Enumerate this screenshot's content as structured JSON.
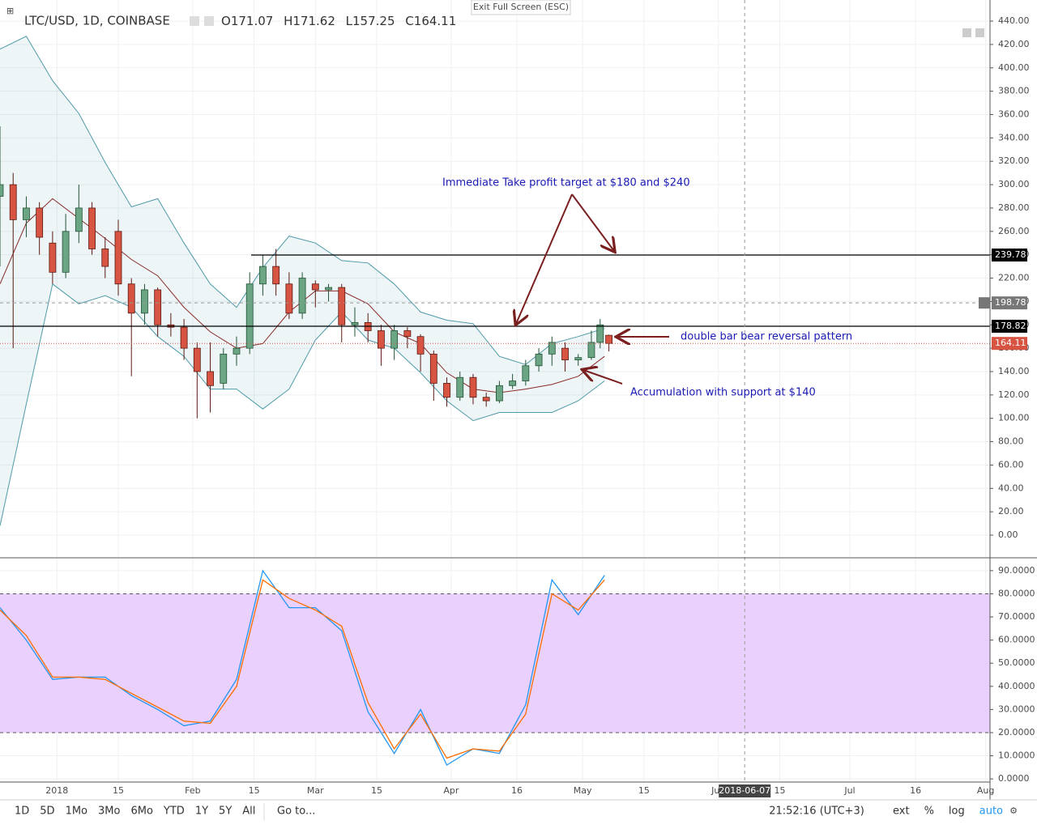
{
  "chart_data": [
    {
      "type": "candlestick",
      "x": [
        "2017-12-19",
        "2017-12-22",
        "2017-12-25",
        "2017-12-28",
        "2017-12-31",
        "2018-01-03",
        "2018-01-06",
        "2018-01-09",
        "2018-01-12",
        "2018-01-15",
        "2018-01-18",
        "2018-01-21",
        "2018-01-24",
        "2018-01-27",
        "2018-01-30",
        "2018-02-02",
        "2018-02-05",
        "2018-02-08",
        "2018-02-11",
        "2018-02-14",
        "2018-02-17",
        "2018-02-20",
        "2018-02-23",
        "2018-02-26",
        "2018-03-01",
        "2018-03-04",
        "2018-03-07",
        "2018-03-10",
        "2018-03-13",
        "2018-03-16",
        "2018-03-19",
        "2018-03-22",
        "2018-03-25",
        "2018-03-28",
        "2018-03-31",
        "2018-04-03",
        "2018-04-06",
        "2018-04-09",
        "2018-04-12",
        "2018-04-15",
        "2018-04-18",
        "2018-04-21",
        "2018-04-24",
        "2018-04-27",
        "2018-04-30",
        "2018-05-03",
        "2018-05-05",
        "2018-05-07"
      ],
      "open": [
        290,
        300,
        270,
        280,
        250,
        225,
        260,
        280,
        245,
        260,
        215,
        190,
        210,
        180,
        178,
        160,
        140,
        130,
        155,
        160,
        215,
        230,
        215,
        190,
        215,
        210,
        212,
        180,
        182,
        175,
        160,
        175,
        170,
        155,
        130,
        118,
        135,
        118,
        115,
        128,
        132,
        145,
        155,
        160,
        150,
        152,
        165,
        171.07
      ],
      "high": [
        350,
        310,
        290,
        285,
        260,
        275,
        300,
        285,
        255,
        270,
        220,
        215,
        212,
        190,
        185,
        165,
        165,
        160,
        170,
        225,
        240,
        245,
        225,
        225,
        218,
        215,
        215,
        195,
        190,
        180,
        180,
        178,
        172,
        158,
        135,
        140,
        138,
        122,
        132,
        138,
        150,
        160,
        170,
        165,
        155,
        175,
        185,
        171.62
      ],
      "low": [
        230,
        160,
        255,
        240,
        215,
        220,
        250,
        240,
        220,
        205,
        136,
        180,
        170,
        170,
        150,
        100,
        105,
        125,
        145,
        155,
        205,
        205,
        185,
        185,
        195,
        200,
        165,
        170,
        165,
        145,
        150,
        160,
        140,
        115,
        110,
        115,
        112,
        110,
        113,
        125,
        128,
        140,
        145,
        140,
        145,
        150,
        160,
        157.25
      ],
      "close": [
        300,
        270,
        280,
        255,
        225,
        260,
        280,
        245,
        230,
        215,
        190,
        210,
        180,
        178,
        160,
        140,
        128,
        155,
        160,
        215,
        230,
        215,
        190,
        220,
        210,
        212,
        180,
        182,
        175,
        160,
        175,
        170,
        155,
        130,
        118,
        135,
        118,
        115,
        128,
        132,
        145,
        155,
        165,
        150,
        152,
        165,
        180,
        164.11
      ],
      "up_color": "#6ba583",
      "down_color": "#d75442",
      "bands": {
        "x": [
          "2017-12-19",
          "2017-12-25",
          "2017-12-31",
          "2018-01-06",
          "2018-01-12",
          "2018-01-18",
          "2018-01-24",
          "2018-01-30",
          "2018-02-05",
          "2018-02-11",
          "2018-02-17",
          "2018-02-23",
          "2018-03-01",
          "2018-03-07",
          "2018-03-13",
          "2018-03-19",
          "2018-03-25",
          "2018-03-31",
          "2018-04-06",
          "2018-04-12",
          "2018-04-18",
          "2018-04-24",
          "2018-04-30",
          "2018-05-06"
        ],
        "upper": [
          416,
          427,
          389,
          361,
          319,
          281,
          288,
          250,
          215,
          195,
          229,
          256,
          250,
          235,
          233,
          215,
          191,
          184,
          181,
          153,
          146,
          164,
          170,
          177
        ],
        "middle": [
          215,
          267,
          288,
          271,
          254,
          236,
          222,
          195,
          174,
          160,
          164,
          191,
          209,
          209,
          198,
          174,
          164,
          139,
          125,
          122,
          125,
          129,
          136,
          153
        ],
        "lower": [
          8,
          112,
          215,
          198,
          205,
          195,
          170,
          153,
          125,
          125,
          108,
          125,
          167,
          191,
          167,
          160,
          139,
          115,
          98,
          105,
          105,
          105,
          115,
          132
        ],
        "band_color": "#4f9aa8",
        "middle_color": "#8a2b2b"
      },
      "levels": [
        239.78,
        178.82
      ],
      "crosshair": {
        "price": 198.78,
        "date": "2018-06-07"
      },
      "annotations": [
        "Immediate Take profit target at $180 and $240",
        "double bar bear reversal pattern",
        "Accumulation with support at $140"
      ],
      "xlim": [
        "2017-12-19",
        "2018-08-02"
      ],
      "xticks": [
        {
          "value": "2018-01-01",
          "label": "2018"
        },
        {
          "value": "2018-01-15",
          "label": "15"
        },
        {
          "value": "2018-02-01",
          "label": "Feb"
        },
        {
          "value": "2018-02-15",
          "label": "15"
        },
        {
          "value": "2018-03-01",
          "label": "Mar"
        },
        {
          "value": "2018-03-15",
          "label": "15"
        },
        {
          "value": "2018-04-01",
          "label": "Apr"
        },
        {
          "value": "2018-04-16",
          "label": "16"
        },
        {
          "value": "2018-05-01",
          "label": "May"
        },
        {
          "value": "2018-05-15",
          "label": "15"
        },
        {
          "value": "2018-06-01",
          "label": "Jun"
        },
        {
          "value": "2018-06-15",
          "label": "15"
        },
        {
          "value": "2018-07-01",
          "label": "Jul"
        },
        {
          "value": "2018-07-16",
          "label": "16"
        },
        {
          "value": "2018-08-01",
          "label": "Aug"
        }
      ],
      "ylim": [
        -18.7,
        454.6
      ],
      "yticks": [
        {
          "value": 0,
          "label": "0.00"
        },
        {
          "value": 20,
          "label": "20.00"
        },
        {
          "value": 40,
          "label": "40.00"
        },
        {
          "value": 60,
          "label": "60.00"
        },
        {
          "value": 80,
          "label": "80.00"
        },
        {
          "value": 100,
          "label": "100.00"
        },
        {
          "value": 120,
          "label": "120.00"
        },
        {
          "value": 140,
          "label": "140.00"
        },
        {
          "value": 160,
          "label": "160.00"
        },
        {
          "value": 180,
          "label": "180.00"
        },
        {
          "value": 200,
          "label": "200.00"
        },
        {
          "value": 220,
          "label": "220.00"
        },
        {
          "value": 240,
          "label": "240.00"
        },
        {
          "value": 260,
          "label": "260.00"
        },
        {
          "value": 280,
          "label": "280.00"
        },
        {
          "value": 300,
          "label": "300.00"
        },
        {
          "value": 320,
          "label": "320.00"
        },
        {
          "value": 340,
          "label": "340.00"
        },
        {
          "value": 360,
          "label": "360.00"
        },
        {
          "value": 380,
          "label": "380.00"
        },
        {
          "value": 400,
          "label": "400.00"
        },
        {
          "value": 420,
          "label": "420.00"
        },
        {
          "value": 440,
          "label": "440.00"
        }
      ],
      "grid": true
    },
    {
      "type": "line",
      "x": [
        "2017-12-19",
        "2017-12-25",
        "2017-12-31",
        "2018-01-06",
        "2018-01-12",
        "2018-01-18",
        "2018-01-24",
        "2018-01-30",
        "2018-02-05",
        "2018-02-11",
        "2018-02-17",
        "2018-02-23",
        "2018-03-01",
        "2018-03-07",
        "2018-03-13",
        "2018-03-19",
        "2018-03-25",
        "2018-03-31",
        "2018-04-06",
        "2018-04-12",
        "2018-04-18",
        "2018-04-24",
        "2018-04-30",
        "2018-05-06"
      ],
      "series": [
        {
          "color": "#2196f3",
          "values": [
            74,
            60,
            43,
            44,
            44,
            36,
            30,
            23,
            25,
            43,
            90,
            74,
            74,
            64,
            29,
            11,
            30,
            6,
            13,
            11,
            32,
            86,
            71,
            88
          ]
        },
        {
          "color": "#ff6d00",
          "values": [
            73,
            62,
            44,
            44,
            43,
            37,
            31,
            25,
            24,
            40,
            86,
            78,
            73,
            66,
            33,
            13,
            28,
            9,
            13,
            12,
            28,
            80,
            73,
            86
          ]
        }
      ],
      "band": [
        20,
        80
      ],
      "band_color": "#e6c8fb",
      "ylim": [
        -1,
        95.2
      ],
      "yticks": [
        {
          "value": 0,
          "label": "0.0000"
        },
        {
          "value": 10,
          "label": "10.0000"
        },
        {
          "value": 20,
          "label": "20.0000"
        },
        {
          "value": 30,
          "label": "30.0000"
        },
        {
          "value": 40,
          "label": "40.0000"
        },
        {
          "value": 50,
          "label": "50.0000"
        },
        {
          "value": 60,
          "label": "60.0000"
        },
        {
          "value": 70,
          "label": "70.0000"
        },
        {
          "value": 80,
          "label": "80.0000"
        },
        {
          "value": 90,
          "label": "90.0000"
        }
      ],
      "grid": true
    }
  ],
  "ui": {
    "symbol": "LTC/USD, 1D, COINBASE",
    "ohlc_prefixes": [
      "O",
      "H",
      "L",
      "C"
    ],
    "exit_button": "Exit Full Screen (ESC)",
    "ranges": [
      "1D",
      "5D",
      "1Mo",
      "3Mo",
      "6Mo",
      "YTD",
      "1Y",
      "5Y",
      "All"
    ],
    "goto": "Go to...",
    "clock": "21:52:16 (UTC+3)",
    "options": [
      "ext",
      "%",
      "log",
      "auto"
    ]
  }
}
